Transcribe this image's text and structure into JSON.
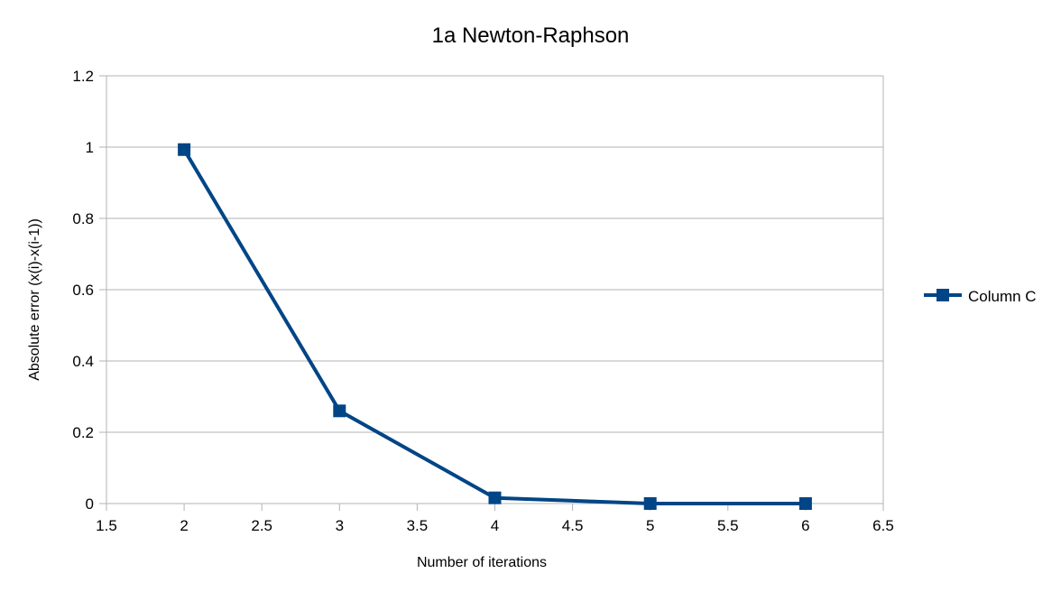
{
  "chart_data": {
    "type": "scatter",
    "title": "1a Newton-Raphson",
    "xlabel": "Number of iterations",
    "ylabel": "Absolute error (x(i)-x(i-1))",
    "xlim": [
      1.5,
      6.5
    ],
    "ylim": [
      0,
      1.2
    ],
    "xticks": [
      "1.5",
      "2",
      "2.5",
      "3",
      "3.5",
      "4",
      "4.5",
      "5",
      "5.5",
      "6",
      "6.5"
    ],
    "yticks": [
      "0",
      "0.2",
      "0.4",
      "0.6",
      "0.8",
      "1",
      "1.2"
    ],
    "grid": "horizontal",
    "legend_position": "right",
    "line_style": "lines-with-square-markers",
    "series": [
      {
        "name": "Column C",
        "color": "#004586",
        "x": [
          2,
          3,
          4,
          5,
          6
        ],
        "y": [
          0.993,
          0.26,
          0.016,
          0.0001,
          0.0
        ]
      }
    ]
  }
}
